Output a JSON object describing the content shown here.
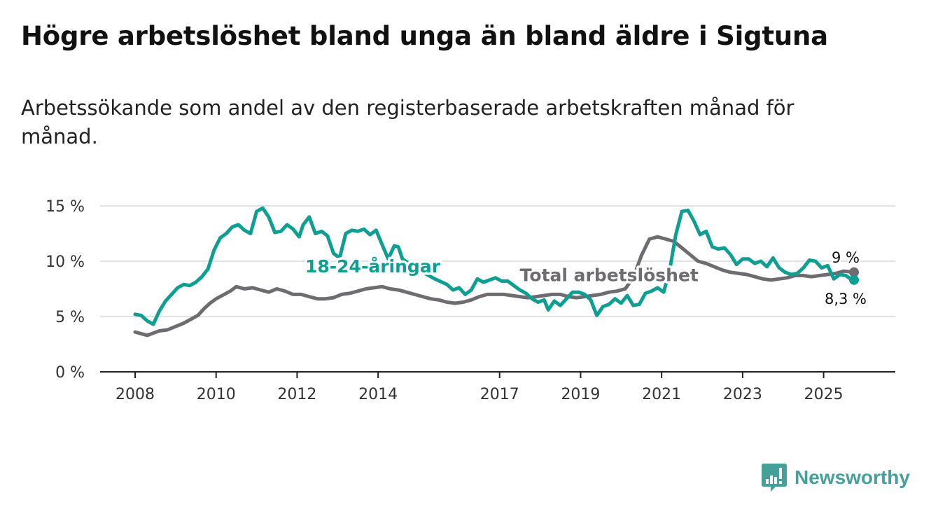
{
  "title": "Högre arbetslöshet bland unga än bland äldre i Sigtuna",
  "subtitle": "Arbetssökande som andel av den registerbaserade arbetskraften månad för månad.",
  "brand": {
    "name": "Newsworthy",
    "icon": "bar-chart-logo-icon",
    "color": "#45a09a"
  },
  "chart_data": {
    "type": "line",
    "title": "Högre arbetslöshet bland unga än bland äldre i Sigtuna",
    "xlabel": "",
    "ylabel": "",
    "x_range": [
      2008,
      2025.75
    ],
    "ylim": [
      0,
      15
    ],
    "x_ticks": [
      {
        "value": 2008,
        "label": "2008"
      },
      {
        "value": 2010,
        "label": "2010"
      },
      {
        "value": 2012,
        "label": "2012"
      },
      {
        "value": 2014,
        "label": "2014"
      },
      {
        "value": 2017,
        "label": "2017"
      },
      {
        "value": 2019,
        "label": "2019"
      },
      {
        "value": 2021,
        "label": "2021"
      },
      {
        "value": 2023,
        "label": "2023"
      },
      {
        "value": 2025,
        "label": "2025"
      }
    ],
    "y_ticks": [
      {
        "value": 0,
        "label": "0 %"
      },
      {
        "value": 5,
        "label": "5 %"
      },
      {
        "value": 10,
        "label": "10 %"
      },
      {
        "value": 15,
        "label": "15 %"
      }
    ],
    "grid": true,
    "series": [
      {
        "name": "Total arbetslöshet",
        "color": "#6f6c71",
        "label_x": 2017.5,
        "label_y": 8.2,
        "end_label": "9 %",
        "points": [
          [
            2008.0,
            3.6
          ],
          [
            2008.2,
            3.4
          ],
          [
            2008.3,
            3.3
          ],
          [
            2008.45,
            3.5
          ],
          [
            2008.6,
            3.7
          ],
          [
            2008.8,
            3.8
          ],
          [
            2009.0,
            4.1
          ],
          [
            2009.2,
            4.4
          ],
          [
            2009.4,
            4.8
          ],
          [
            2009.55,
            5.1
          ],
          [
            2009.7,
            5.7
          ],
          [
            2009.85,
            6.2
          ],
          [
            2010.0,
            6.6
          ],
          [
            2010.2,
            7.0
          ],
          [
            2010.35,
            7.3
          ],
          [
            2010.5,
            7.7
          ],
          [
            2010.7,
            7.5
          ],
          [
            2010.9,
            7.6
          ],
          [
            2011.1,
            7.4
          ],
          [
            2011.3,
            7.2
          ],
          [
            2011.5,
            7.5
          ],
          [
            2011.7,
            7.3
          ],
          [
            2011.9,
            7.0
          ],
          [
            2012.1,
            7.0
          ],
          [
            2012.3,
            6.8
          ],
          [
            2012.5,
            6.6
          ],
          [
            2012.7,
            6.6
          ],
          [
            2012.9,
            6.7
          ],
          [
            2013.1,
            7.0
          ],
          [
            2013.3,
            7.1
          ],
          [
            2013.5,
            7.3
          ],
          [
            2013.7,
            7.5
          ],
          [
            2013.9,
            7.6
          ],
          [
            2014.1,
            7.7
          ],
          [
            2014.3,
            7.5
          ],
          [
            2014.5,
            7.4
          ],
          [
            2014.7,
            7.2
          ],
          [
            2014.9,
            7.0
          ],
          [
            2015.1,
            6.8
          ],
          [
            2015.3,
            6.6
          ],
          [
            2015.5,
            6.5
          ],
          [
            2015.7,
            6.3
          ],
          [
            2015.9,
            6.2
          ],
          [
            2016.1,
            6.3
          ],
          [
            2016.3,
            6.5
          ],
          [
            2016.5,
            6.8
          ],
          [
            2016.7,
            7.0
          ],
          [
            2016.9,
            7.0
          ],
          [
            2017.1,
            7.0
          ],
          [
            2017.3,
            6.9
          ],
          [
            2017.5,
            6.8
          ],
          [
            2017.7,
            6.7
          ],
          [
            2017.9,
            6.8
          ],
          [
            2018.1,
            6.9
          ],
          [
            2018.3,
            7.0
          ],
          [
            2018.5,
            7.0
          ],
          [
            2018.7,
            6.8
          ],
          [
            2018.9,
            6.7
          ],
          [
            2019.1,
            6.8
          ],
          [
            2019.3,
            6.9
          ],
          [
            2019.5,
            7.0
          ],
          [
            2019.7,
            7.2
          ],
          [
            2019.9,
            7.3
          ],
          [
            2020.1,
            7.5
          ],
          [
            2020.3,
            8.5
          ],
          [
            2020.5,
            10.5
          ],
          [
            2020.7,
            12.0
          ],
          [
            2020.9,
            12.2
          ],
          [
            2021.1,
            12.0
          ],
          [
            2021.3,
            11.8
          ],
          [
            2021.5,
            11.2
          ],
          [
            2021.7,
            10.6
          ],
          [
            2021.9,
            10.0
          ],
          [
            2022.1,
            9.8
          ],
          [
            2022.3,
            9.5
          ],
          [
            2022.5,
            9.2
          ],
          [
            2022.7,
            9.0
          ],
          [
            2022.9,
            8.9
          ],
          [
            2023.1,
            8.8
          ],
          [
            2023.3,
            8.6
          ],
          [
            2023.5,
            8.4
          ],
          [
            2023.7,
            8.3
          ],
          [
            2023.9,
            8.4
          ],
          [
            2024.1,
            8.5
          ],
          [
            2024.3,
            8.7
          ],
          [
            2024.5,
            8.7
          ],
          [
            2024.7,
            8.6
          ],
          [
            2024.9,
            8.7
          ],
          [
            2025.1,
            8.8
          ],
          [
            2025.3,
            8.9
          ],
          [
            2025.5,
            9.1
          ],
          [
            2025.75,
            9.0
          ]
        ]
      },
      {
        "name": "18-24-åringar",
        "color": "#0f9f92",
        "label_x": 2012.2,
        "label_y": 9.0,
        "end_label": "8,3 %",
        "points": [
          [
            2008.0,
            5.2
          ],
          [
            2008.15,
            5.1
          ],
          [
            2008.3,
            4.6
          ],
          [
            2008.45,
            4.3
          ],
          [
            2008.6,
            5.5
          ],
          [
            2008.75,
            6.4
          ],
          [
            2008.9,
            7.0
          ],
          [
            2009.05,
            7.6
          ],
          [
            2009.2,
            7.9
          ],
          [
            2009.35,
            7.8
          ],
          [
            2009.5,
            8.1
          ],
          [
            2009.65,
            8.6
          ],
          [
            2009.8,
            9.3
          ],
          [
            2009.95,
            11.0
          ],
          [
            2010.1,
            12.1
          ],
          [
            2010.25,
            12.5
          ],
          [
            2010.4,
            13.1
          ],
          [
            2010.55,
            13.3
          ],
          [
            2010.7,
            12.8
          ],
          [
            2010.85,
            12.5
          ],
          [
            2011.0,
            14.5
          ],
          [
            2011.15,
            14.8
          ],
          [
            2011.3,
            14.0
          ],
          [
            2011.45,
            12.6
          ],
          [
            2011.6,
            12.7
          ],
          [
            2011.75,
            13.3
          ],
          [
            2011.9,
            12.9
          ],
          [
            2012.05,
            12.2
          ],
          [
            2012.15,
            13.3
          ],
          [
            2012.3,
            14.0
          ],
          [
            2012.45,
            12.5
          ],
          [
            2012.6,
            12.7
          ],
          [
            2012.75,
            12.3
          ],
          [
            2012.9,
            10.7
          ],
          [
            2013.05,
            10.3
          ],
          [
            2013.2,
            12.5
          ],
          [
            2013.35,
            12.8
          ],
          [
            2013.5,
            12.7
          ],
          [
            2013.65,
            12.9
          ],
          [
            2013.8,
            12.4
          ],
          [
            2013.95,
            12.8
          ],
          [
            2014.1,
            11.5
          ],
          [
            2014.25,
            10.2
          ],
          [
            2014.4,
            11.4
          ],
          [
            2014.5,
            11.3
          ],
          [
            2014.6,
            10.2
          ],
          [
            2015.0,
            9.2
          ],
          [
            2015.4,
            8.4
          ],
          [
            2015.7,
            7.9
          ],
          [
            2015.85,
            7.4
          ],
          [
            2016.0,
            7.6
          ],
          [
            2016.15,
            7.0
          ],
          [
            2016.3,
            7.4
          ],
          [
            2016.45,
            8.4
          ],
          [
            2016.6,
            8.1
          ],
          [
            2016.75,
            8.3
          ],
          [
            2016.9,
            8.5
          ],
          [
            2017.05,
            8.2
          ],
          [
            2017.2,
            8.2
          ],
          [
            2017.35,
            7.8
          ],
          [
            2017.5,
            7.4
          ],
          [
            2017.65,
            7.1
          ],
          [
            2017.8,
            6.6
          ],
          [
            2017.95,
            6.3
          ],
          [
            2018.1,
            6.5
          ],
          [
            2018.2,
            5.6
          ],
          [
            2018.35,
            6.4
          ],
          [
            2018.5,
            6.0
          ],
          [
            2018.65,
            6.6
          ],
          [
            2018.8,
            7.2
          ],
          [
            2018.95,
            7.2
          ],
          [
            2019.1,
            7.0
          ],
          [
            2019.25,
            6.5
          ],
          [
            2019.4,
            5.1
          ],
          [
            2019.55,
            5.9
          ],
          [
            2019.7,
            6.1
          ],
          [
            2019.85,
            6.6
          ],
          [
            2020.0,
            6.2
          ],
          [
            2020.15,
            6.9
          ],
          [
            2020.3,
            6.0
          ],
          [
            2020.45,
            6.1
          ],
          [
            2020.6,
            7.1
          ],
          [
            2020.75,
            7.3
          ],
          [
            2020.9,
            7.6
          ],
          [
            2021.05,
            7.2
          ],
          [
            2021.2,
            9.2
          ],
          [
            2021.35,
            12.4
          ],
          [
            2021.5,
            14.5
          ],
          [
            2021.65,
            14.6
          ],
          [
            2021.8,
            13.6
          ],
          [
            2021.95,
            12.4
          ],
          [
            2022.1,
            12.7
          ],
          [
            2022.25,
            11.3
          ],
          [
            2022.4,
            11.1
          ],
          [
            2022.55,
            11.2
          ],
          [
            2022.7,
            10.6
          ],
          [
            2022.85,
            9.7
          ],
          [
            2023.0,
            10.2
          ],
          [
            2023.15,
            10.2
          ],
          [
            2023.3,
            9.8
          ],
          [
            2023.45,
            10.0
          ],
          [
            2023.6,
            9.5
          ],
          [
            2023.75,
            10.3
          ],
          [
            2023.9,
            9.4
          ],
          [
            2024.05,
            9.0
          ],
          [
            2024.2,
            8.8
          ],
          [
            2024.35,
            8.9
          ],
          [
            2024.5,
            9.4
          ],
          [
            2024.65,
            10.1
          ],
          [
            2024.8,
            10.0
          ],
          [
            2024.95,
            9.4
          ],
          [
            2025.1,
            9.6
          ],
          [
            2025.25,
            8.4
          ],
          [
            2025.4,
            8.8
          ],
          [
            2025.55,
            8.7
          ],
          [
            2025.7,
            8.3
          ],
          [
            2025.75,
            8.3
          ]
        ]
      }
    ]
  }
}
